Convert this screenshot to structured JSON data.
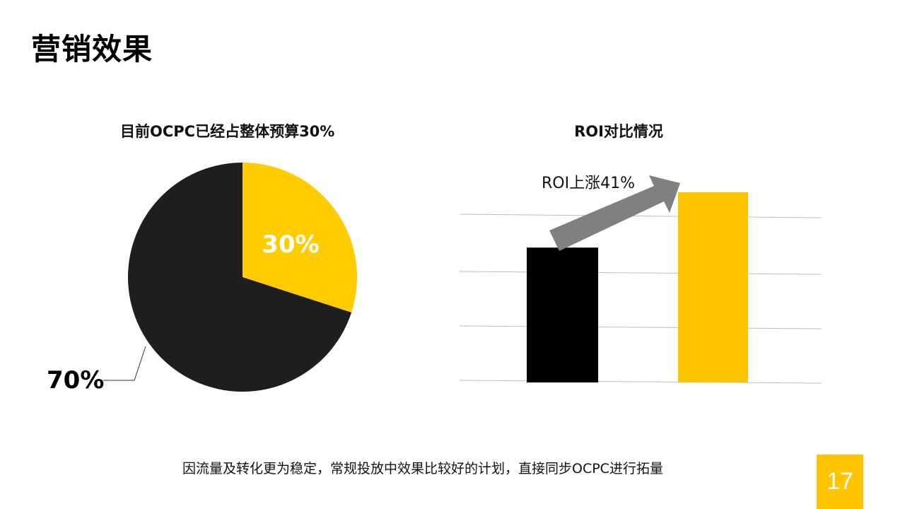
{
  "slide": {
    "title": "营销效果",
    "footer_note": "因流量及转化更为稳定，常规投放中效果比较好的计划，直接同步OCPC进行拓量",
    "page_number": "17",
    "accent_color": "#ffc400",
    "dark_color": "#1e1e1e"
  },
  "chart_data": [
    {
      "type": "pie",
      "title": "目前OCPC已经占整体预算30%",
      "slices": [
        {
          "label": "30%",
          "value": 30,
          "color": "#ffcc00"
        },
        {
          "label": "70%",
          "value": 70,
          "color": "#1e1e1e"
        }
      ]
    },
    {
      "type": "bar",
      "title": "ROI对比情况",
      "annotation": "ROI上涨41%",
      "categories": [
        "",
        ""
      ],
      "values": [
        1.0,
        1.41
      ],
      "colors": [
        "#000000",
        "#ffc400"
      ],
      "grid": true,
      "legend": "none"
    }
  ]
}
